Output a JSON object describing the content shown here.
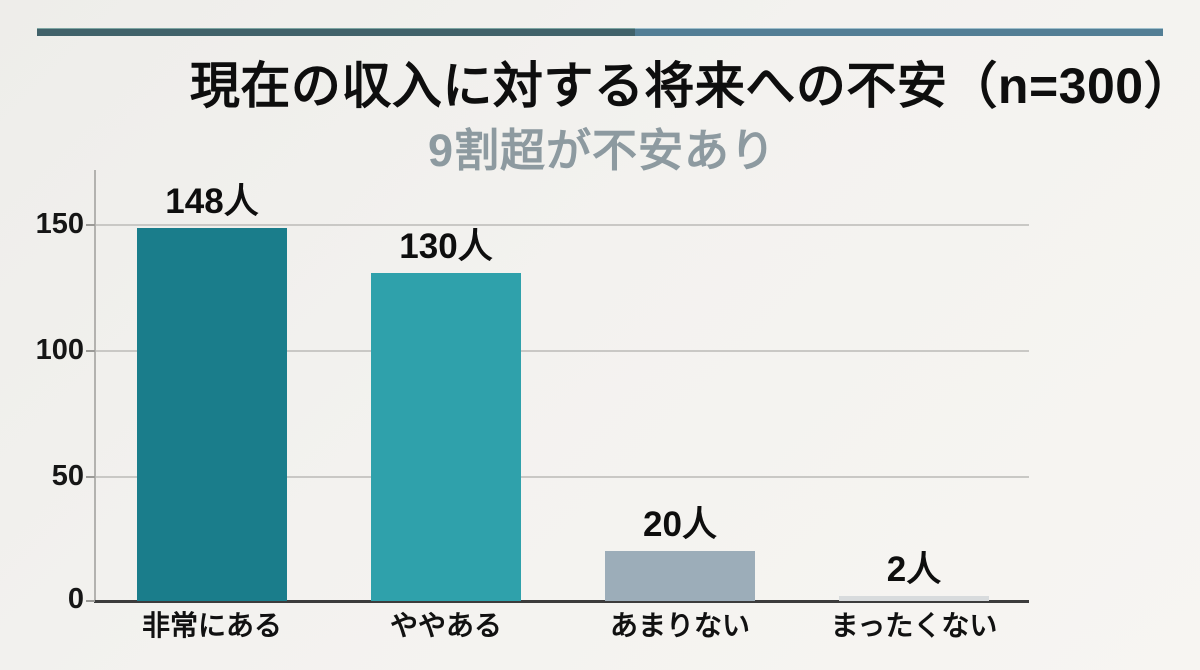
{
  "header": {
    "title": "現在の収入に対する将来への不安（n=300）",
    "subtitle": "9割超が不安あり"
  },
  "chart_data": {
    "type": "bar",
    "title": "現在の収入に対する将来への不安（n=300）",
    "subtitle": "9割超が不安あり",
    "sample_size_note": "n=300",
    "categories": [
      "非常にある",
      "ややある",
      "あまりない",
      "まったくない"
    ],
    "values": [
      148,
      130,
      20,
      2
    ],
    "value_labels": [
      "148人",
      "130人",
      "20人",
      "2人"
    ],
    "unit": "人",
    "ylim": [
      0,
      170
    ],
    "yticks": [
      150,
      100,
      50,
      0
    ],
    "ytick_labels": [
      "150",
      "100",
      "50",
      "0"
    ],
    "grid": "horizontal-major",
    "legend": "none",
    "bar_colors": [
      "#1a7d8b",
      "#2fa1ab",
      "#9cadb9",
      "#d8dbdd"
    ]
  },
  "style": {
    "rule_left_color": "#41626a",
    "rule_right_color": "#537e95",
    "subtitle_color": "#8d9aa0",
    "background_color": "#f3f2ef"
  }
}
